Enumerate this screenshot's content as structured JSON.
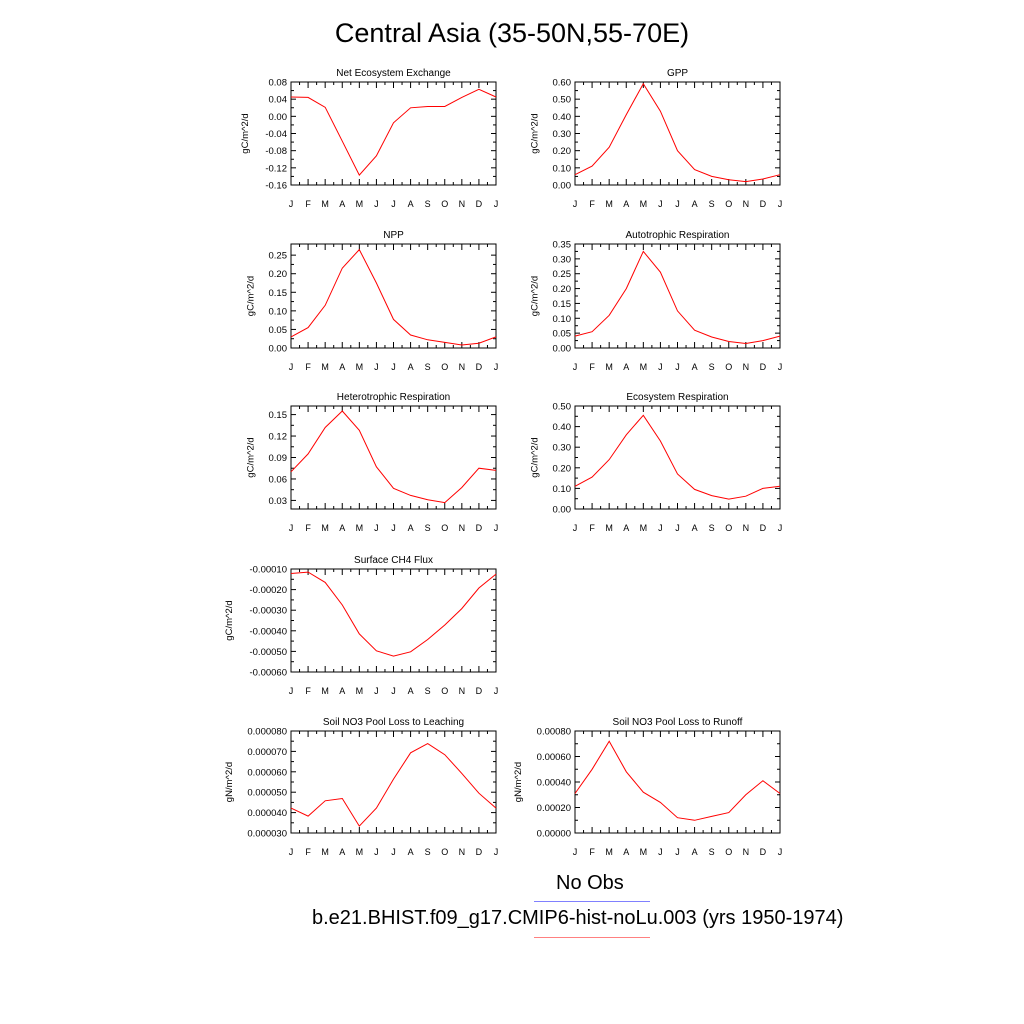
{
  "title": "Central Asia (35-50N,55-70E)",
  "colors": {
    "model": "#ff0000",
    "obs": "#8080ff",
    "axis": "#000000"
  },
  "legend": {
    "obs_label": "No Obs",
    "model_label": "b.e21.BHIST.f09_g17.CMIP6-hist-noLu.003 (yrs 1950-1974)"
  },
  "chart_data": [
    {
      "type": "line",
      "title": "Net Ecosystem Exchange",
      "ylabel": "gC/m^2/d",
      "categories": [
        "J",
        "F",
        "M",
        "A",
        "M",
        "J",
        "J",
        "A",
        "S",
        "O",
        "N",
        "D",
        "J"
      ],
      "ylim": [
        -0.16,
        0.08
      ],
      "yticks": [
        -0.16,
        -0.12,
        -0.08,
        -0.04,
        0.0,
        0.04,
        0.08
      ],
      "ytick_labels": [
        "-0.16",
        "-0.12",
        "-0.08",
        "-0.04",
        "0.00",
        "0.04",
        "0.08"
      ],
      "values": [
        0.045,
        0.044,
        0.021,
        -0.058,
        -0.137,
        -0.092,
        -0.015,
        0.02,
        0.023,
        0.023,
        0.044,
        0.063,
        0.045
      ]
    },
    {
      "type": "line",
      "title": "GPP",
      "ylabel": "gC/m^2/d",
      "categories": [
        "J",
        "F",
        "M",
        "A",
        "M",
        "J",
        "J",
        "A",
        "S",
        "O",
        "N",
        "D",
        "J"
      ],
      "ylim": [
        0.0,
        0.6
      ],
      "yticks": [
        0.0,
        0.1,
        0.2,
        0.3,
        0.4,
        0.5,
        0.6
      ],
      "ytick_labels": [
        "0.00",
        "0.10",
        "0.20",
        "0.30",
        "0.40",
        "0.50",
        "0.60"
      ],
      "values": [
        0.06,
        0.11,
        0.22,
        0.41,
        0.59,
        0.43,
        0.2,
        0.09,
        0.05,
        0.03,
        0.02,
        0.035,
        0.06
      ]
    },
    {
      "type": "line",
      "title": "NPP",
      "ylabel": "gC/m^2/d",
      "categories": [
        "J",
        "F",
        "M",
        "A",
        "M",
        "J",
        "J",
        "A",
        "S",
        "O",
        "N",
        "D",
        "J"
      ],
      "ylim": [
        0.0,
        0.28
      ],
      "yticks": [
        0.0,
        0.05,
        0.1,
        0.15,
        0.2,
        0.25
      ],
      "ytick_labels": [
        "0.00",
        "0.05",
        "0.10",
        "0.15",
        "0.20",
        "0.25"
      ],
      "values": [
        0.03,
        0.055,
        0.115,
        0.215,
        0.265,
        0.175,
        0.077,
        0.035,
        0.022,
        0.015,
        0.008,
        0.013,
        0.03
      ]
    },
    {
      "type": "line",
      "title": "Autotrophic Respiration",
      "ylabel": "gC/m^2/d",
      "categories": [
        "J",
        "F",
        "M",
        "A",
        "M",
        "J",
        "J",
        "A",
        "S",
        "O",
        "N",
        "D",
        "J"
      ],
      "ylim": [
        0.0,
        0.35
      ],
      "yticks": [
        0.0,
        0.05,
        0.1,
        0.15,
        0.2,
        0.25,
        0.3,
        0.35
      ],
      "ytick_labels": [
        "0.00",
        "0.05",
        "0.10",
        "0.15",
        "0.20",
        "0.25",
        "0.30",
        "0.35"
      ],
      "values": [
        0.04,
        0.055,
        0.11,
        0.2,
        0.325,
        0.255,
        0.125,
        0.06,
        0.037,
        0.022,
        0.015,
        0.025,
        0.04
      ]
    },
    {
      "type": "line",
      "title": "Heterotrophic Respiration",
      "ylabel": "gC/m^2/d",
      "categories": [
        "J",
        "F",
        "M",
        "A",
        "M",
        "J",
        "J",
        "A",
        "S",
        "O",
        "N",
        "D",
        "J"
      ],
      "ylim": [
        0.018,
        0.162
      ],
      "yticks": [
        0.03,
        0.06,
        0.09,
        0.12,
        0.15
      ],
      "ytick_labels": [
        "0.03",
        "0.06",
        "0.09",
        "0.12",
        "0.15"
      ],
      "values": [
        0.07,
        0.095,
        0.132,
        0.155,
        0.128,
        0.077,
        0.047,
        0.037,
        0.031,
        0.027,
        0.048,
        0.075,
        0.072
      ]
    },
    {
      "type": "line",
      "title": "Ecosystem Respiration",
      "ylabel": "gC/m^2/d",
      "categories": [
        "J",
        "F",
        "M",
        "A",
        "M",
        "J",
        "J",
        "A",
        "S",
        "O",
        "N",
        "D",
        "J"
      ],
      "ylim": [
        0.0,
        0.5
      ],
      "yticks": [
        0.0,
        0.1,
        0.2,
        0.3,
        0.4,
        0.5
      ],
      "ytick_labels": [
        "0.00",
        "0.10",
        "0.20",
        "0.30",
        "0.40",
        "0.50"
      ],
      "values": [
        0.11,
        0.155,
        0.24,
        0.36,
        0.455,
        0.33,
        0.17,
        0.095,
        0.065,
        0.048,
        0.062,
        0.1,
        0.11
      ]
    },
    {
      "type": "line",
      "title": "Surface CH4 Flux",
      "ylabel": "gC/m^2/d",
      "categories": [
        "J",
        "F",
        "M",
        "A",
        "M",
        "J",
        "J",
        "A",
        "S",
        "O",
        "N",
        "D",
        "J"
      ],
      "ylim": [
        -0.0006,
        -0.0001
      ],
      "yticks": [
        -0.0006,
        -0.0005,
        -0.0004,
        -0.0003,
        -0.0002,
        -0.0001
      ],
      "ytick_labels": [
        "-0.00060",
        "-0.00050",
        "-0.00040",
        "-0.00030",
        "-0.00020",
        "-0.00010"
      ],
      "values": [
        -0.000122,
        -0.000115,
        -0.000165,
        -0.000275,
        -0.000415,
        -0.000497,
        -0.000523,
        -0.000502,
        -0.000442,
        -0.000372,
        -0.000292,
        -0.000192,
        -0.000125
      ]
    },
    {
      "type": "line",
      "title": "Soil NO3 Pool Loss to Leaching",
      "ylabel": "gN/m^2/d",
      "categories": [
        "J",
        "F",
        "M",
        "A",
        "M",
        "J",
        "J",
        "A",
        "S",
        "O",
        "N",
        "D",
        "J"
      ],
      "ylim": [
        3e-05,
        8e-05
      ],
      "yticks": [
        3e-05,
        4e-05,
        5e-05,
        6e-05,
        7e-05,
        8e-05
      ],
      "ytick_labels": [
        "0.000030",
        "0.000040",
        "0.000050",
        "0.000060",
        "0.000070",
        "0.000080"
      ],
      "values": [
        4.22e-05,
        3.83e-05,
        4.58e-05,
        4.69e-05,
        3.34e-05,
        4.22e-05,
        5.64e-05,
        6.93e-05,
        7.38e-05,
        6.84e-05,
        5.92e-05,
        4.95e-05,
        4.22e-05
      ]
    },
    {
      "type": "line",
      "title": "Soil NO3 Pool Loss to Runoff",
      "ylabel": "gN/m^2/d",
      "categories": [
        "J",
        "F",
        "M",
        "A",
        "M",
        "J",
        "J",
        "A",
        "S",
        "O",
        "N",
        "D",
        "J"
      ],
      "ylim": [
        0.0,
        0.0008
      ],
      "yticks": [
        0.0,
        0.0002,
        0.0004,
        0.0006,
        0.0008
      ],
      "ytick_labels": [
        "0.00000",
        "0.00020",
        "0.00040",
        "0.00060",
        "0.00080"
      ],
      "values": [
        0.00031,
        0.0005,
        0.00072,
        0.00048,
        0.00032,
        0.00024,
        0.00012,
        0.0001,
        0.00013,
        0.00016,
        0.0003,
        0.00041,
        0.00031
      ]
    }
  ]
}
